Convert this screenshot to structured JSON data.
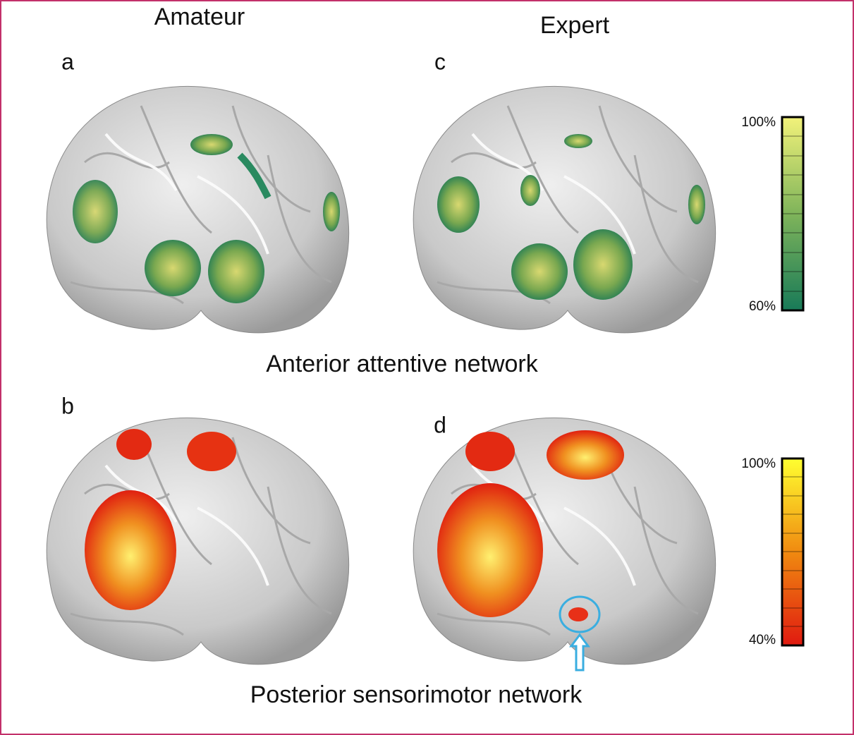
{
  "columns": [
    "Amateur",
    "Expert"
  ],
  "panels": {
    "a": "a",
    "b": "b",
    "c": "c",
    "d": "d"
  },
  "rows": [
    "Anterior attentive network",
    "Posterior sensorimotor network"
  ],
  "colorbars": [
    {
      "top": "100%",
      "bottom": "60%"
    },
    {
      "top": "100%",
      "bottom": "40%"
    }
  ]
}
